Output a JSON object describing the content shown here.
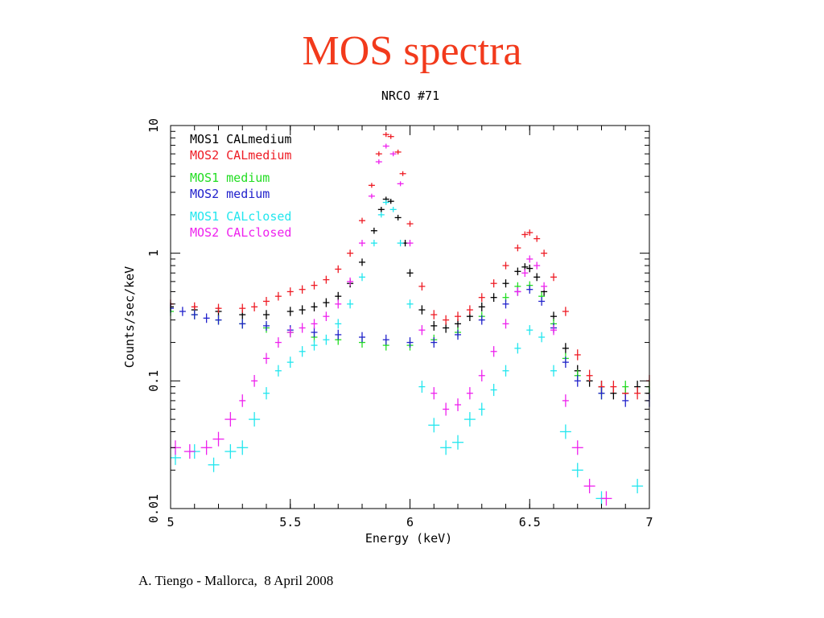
{
  "slide": {
    "title": "MOS spectra",
    "footer": "A. Tiengo - Mallorca,  8 April 2008"
  },
  "colors": {
    "title": "#f23a1c",
    "axis": "#000000",
    "MOS1 CALmedium": "#000000",
    "MOS2 CALmedium": "#ee1c25",
    "MOS1 medium": "#22dd22",
    "MOS2 medium": "#2222cc",
    "MOS1 CALclosed": "#22e6ee",
    "MOS2 CALclosed": "#ee22ee"
  },
  "chart_data": {
    "type": "scatter",
    "title": "NRCO #71",
    "xlabel": "Energy (keV)",
    "ylabel": "Counts/sec/keV",
    "xlim": [
      5,
      7
    ],
    "ylim": [
      0.01,
      10
    ],
    "yscale": "log",
    "x_ticks": [
      "5",
      "5.5",
      "6",
      "6.5",
      "7"
    ],
    "x_tick_values": [
      5,
      5.5,
      6,
      6.5,
      7
    ],
    "y_ticks": [
      "0.01",
      "0.1",
      "1",
      "10"
    ],
    "y_tick_values": [
      0.01,
      0.1,
      1,
      10
    ],
    "grid": false,
    "legend_position": "top-left",
    "error_bars": true,
    "series": [
      {
        "name": "MOS1 CALmedium",
        "points": [
          [
            5.0,
            0.38
          ],
          [
            5.1,
            0.36
          ],
          [
            5.2,
            0.35
          ],
          [
            5.3,
            0.33
          ],
          [
            5.4,
            0.33
          ],
          [
            5.5,
            0.35
          ],
          [
            5.55,
            0.36
          ],
          [
            5.6,
            0.38
          ],
          [
            5.65,
            0.41
          ],
          [
            5.7,
            0.46
          ],
          [
            5.75,
            0.58
          ],
          [
            5.8,
            0.85
          ],
          [
            5.85,
            1.5
          ],
          [
            5.88,
            2.2
          ],
          [
            5.9,
            2.65
          ],
          [
            5.92,
            2.55
          ],
          [
            5.95,
            1.9
          ],
          [
            5.98,
            1.2
          ],
          [
            6.0,
            0.7
          ],
          [
            6.05,
            0.36
          ],
          [
            6.1,
            0.27
          ],
          [
            6.15,
            0.26
          ],
          [
            6.2,
            0.28
          ],
          [
            6.25,
            0.32
          ],
          [
            6.3,
            0.38
          ],
          [
            6.35,
            0.45
          ],
          [
            6.4,
            0.58
          ],
          [
            6.45,
            0.72
          ],
          [
            6.48,
            0.78
          ],
          [
            6.5,
            0.76
          ],
          [
            6.53,
            0.65
          ],
          [
            6.56,
            0.5
          ],
          [
            6.6,
            0.32
          ],
          [
            6.65,
            0.18
          ],
          [
            6.7,
            0.12
          ],
          [
            6.75,
            0.1
          ],
          [
            6.8,
            0.09
          ],
          [
            6.85,
            0.08
          ],
          [
            6.9,
            0.08
          ],
          [
            6.95,
            0.09
          ],
          [
            7.0,
            0.08
          ]
        ]
      },
      {
        "name": "MOS2 CALmedium",
        "points": [
          [
            5.0,
            0.4
          ],
          [
            5.1,
            0.38
          ],
          [
            5.2,
            0.37
          ],
          [
            5.3,
            0.37
          ],
          [
            5.35,
            0.38
          ],
          [
            5.4,
            0.42
          ],
          [
            5.45,
            0.46
          ],
          [
            5.5,
            0.5
          ],
          [
            5.55,
            0.52
          ],
          [
            5.6,
            0.56
          ],
          [
            5.65,
            0.62
          ],
          [
            5.7,
            0.75
          ],
          [
            5.75,
            1.0
          ],
          [
            5.8,
            1.8
          ],
          [
            5.84,
            3.4
          ],
          [
            5.87,
            6.0
          ],
          [
            5.9,
            8.5
          ],
          [
            5.92,
            8.2
          ],
          [
            5.95,
            6.2
          ],
          [
            5.97,
            4.2
          ],
          [
            6.0,
            1.7
          ],
          [
            6.05,
            0.55
          ],
          [
            6.1,
            0.33
          ],
          [
            6.15,
            0.3
          ],
          [
            6.2,
            0.32
          ],
          [
            6.25,
            0.36
          ],
          [
            6.3,
            0.45
          ],
          [
            6.35,
            0.58
          ],
          [
            6.4,
            0.8
          ],
          [
            6.45,
            1.1
          ],
          [
            6.48,
            1.4
          ],
          [
            6.5,
            1.45
          ],
          [
            6.53,
            1.3
          ],
          [
            6.56,
            1.0
          ],
          [
            6.6,
            0.65
          ],
          [
            6.65,
            0.35
          ],
          [
            6.7,
            0.16
          ],
          [
            6.75,
            0.11
          ],
          [
            6.8,
            0.09
          ],
          [
            6.85,
            0.09
          ],
          [
            6.9,
            0.08
          ],
          [
            6.95,
            0.08
          ],
          [
            7.0,
            0.1
          ]
        ]
      },
      {
        "name": "MOS1 medium",
        "points": [
          [
            5.0,
            0.35
          ],
          [
            5.1,
            0.33
          ],
          [
            5.2,
            0.3
          ],
          [
            5.3,
            0.28
          ],
          [
            5.4,
            0.26
          ],
          [
            5.5,
            0.24
          ],
          [
            5.6,
            0.22
          ],
          [
            5.7,
            0.21
          ],
          [
            5.8,
            0.2
          ],
          [
            5.9,
            0.19
          ],
          [
            6.0,
            0.19
          ],
          [
            6.1,
            0.21
          ],
          [
            6.2,
            0.24
          ],
          [
            6.3,
            0.32
          ],
          [
            6.4,
            0.45
          ],
          [
            6.45,
            0.55
          ],
          [
            6.5,
            0.56
          ],
          [
            6.55,
            0.46
          ],
          [
            6.6,
            0.28
          ],
          [
            6.65,
            0.15
          ],
          [
            6.7,
            0.11
          ],
          [
            6.8,
            0.08
          ],
          [
            6.9,
            0.09
          ],
          [
            7.0,
            0.09
          ]
        ]
      },
      {
        "name": "MOS2 medium",
        "points": [
          [
            5.0,
            0.37
          ],
          [
            5.05,
            0.35
          ],
          [
            5.1,
            0.33
          ],
          [
            5.15,
            0.31
          ],
          [
            5.2,
            0.3
          ],
          [
            5.3,
            0.28
          ],
          [
            5.4,
            0.27
          ],
          [
            5.5,
            0.25
          ],
          [
            5.6,
            0.24
          ],
          [
            5.7,
            0.23
          ],
          [
            5.8,
            0.22
          ],
          [
            5.9,
            0.21
          ],
          [
            6.0,
            0.2
          ],
          [
            6.1,
            0.2
          ],
          [
            6.2,
            0.23
          ],
          [
            6.3,
            0.3
          ],
          [
            6.4,
            0.4
          ],
          [
            6.45,
            0.5
          ],
          [
            6.5,
            0.52
          ],
          [
            6.55,
            0.42
          ],
          [
            6.6,
            0.26
          ],
          [
            6.65,
            0.14
          ],
          [
            6.7,
            0.1
          ],
          [
            6.8,
            0.08
          ],
          [
            6.9,
            0.07
          ],
          [
            7.0,
            0.07
          ]
        ]
      },
      {
        "name": "MOS1 CALclosed",
        "points": [
          [
            5.02,
            0.025
          ],
          [
            5.1,
            0.028
          ],
          [
            5.18,
            0.022
          ],
          [
            5.25,
            0.028
          ],
          [
            5.3,
            0.03
          ],
          [
            5.35,
            0.05
          ],
          [
            5.4,
            0.08
          ],
          [
            5.45,
            0.12
          ],
          [
            5.5,
            0.14
          ],
          [
            5.55,
            0.17
          ],
          [
            5.6,
            0.19
          ],
          [
            5.65,
            0.21
          ],
          [
            5.7,
            0.28
          ],
          [
            5.75,
            0.4
          ],
          [
            5.8,
            0.65
          ],
          [
            5.85,
            1.2
          ],
          [
            5.88,
            2.0
          ],
          [
            5.9,
            2.5
          ],
          [
            5.93,
            2.2
          ],
          [
            5.96,
            1.2
          ],
          [
            6.0,
            0.4
          ],
          [
            6.05,
            0.09
          ],
          [
            6.1,
            0.045
          ],
          [
            6.15,
            0.03
          ],
          [
            6.2,
            0.033
          ],
          [
            6.25,
            0.05
          ],
          [
            6.3,
            0.06
          ],
          [
            6.35,
            0.085
          ],
          [
            6.4,
            0.12
          ],
          [
            6.45,
            0.18
          ],
          [
            6.5,
            0.25
          ],
          [
            6.55,
            0.22
          ],
          [
            6.6,
            0.12
          ],
          [
            6.65,
            0.04
          ],
          [
            6.7,
            0.02
          ],
          [
            6.8,
            0.012
          ],
          [
            6.95,
            0.015
          ]
        ]
      },
      {
        "name": "MOS2 CALclosed",
        "points": [
          [
            5.02,
            0.03
          ],
          [
            5.08,
            0.028
          ],
          [
            5.15,
            0.03
          ],
          [
            5.2,
            0.035
          ],
          [
            5.25,
            0.05
          ],
          [
            5.3,
            0.07
          ],
          [
            5.35,
            0.1
          ],
          [
            5.4,
            0.15
          ],
          [
            5.45,
            0.2
          ],
          [
            5.5,
            0.24
          ],
          [
            5.55,
            0.26
          ],
          [
            5.6,
            0.28
          ],
          [
            5.65,
            0.32
          ],
          [
            5.7,
            0.4
          ],
          [
            5.75,
            0.6
          ],
          [
            5.8,
            1.2
          ],
          [
            5.84,
            2.8
          ],
          [
            5.87,
            5.2
          ],
          [
            5.9,
            6.9
          ],
          [
            5.93,
            6.0
          ],
          [
            5.96,
            3.5
          ],
          [
            6.0,
            1.2
          ],
          [
            6.05,
            0.25
          ],
          [
            6.1,
            0.08
          ],
          [
            6.15,
            0.06
          ],
          [
            6.2,
            0.065
          ],
          [
            6.25,
            0.08
          ],
          [
            6.3,
            0.11
          ],
          [
            6.35,
            0.17
          ],
          [
            6.4,
            0.28
          ],
          [
            6.45,
            0.5
          ],
          [
            6.48,
            0.7
          ],
          [
            6.5,
            0.9
          ],
          [
            6.53,
            0.8
          ],
          [
            6.56,
            0.55
          ],
          [
            6.6,
            0.25
          ],
          [
            6.65,
            0.07
          ],
          [
            6.7,
            0.03
          ],
          [
            6.75,
            0.015
          ],
          [
            6.82,
            0.012
          ]
        ]
      }
    ]
  }
}
